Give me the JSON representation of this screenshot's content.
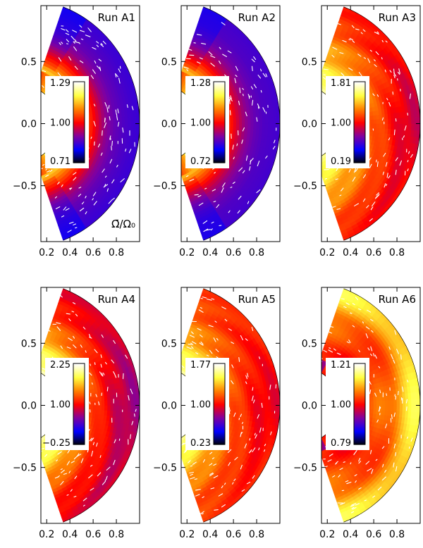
{
  "figure": {
    "colorbar_label": "Ω̄/Ω₀"
  },
  "axes": {
    "yticks": [
      "0.5",
      "0.0",
      "−0.5"
    ],
    "xticks": [
      "0.2",
      "0.4",
      "0.6",
      "0.8"
    ],
    "r_inner": 0.3,
    "r_outer": 1.0,
    "theta_range_deg": [
      -70,
      70
    ]
  },
  "colormap": {
    "stops": [
      "#000000",
      "#0000ff",
      "#8000a0",
      "#ff0000",
      "#ff8000",
      "#ffff40",
      "#ffffff"
    ]
  },
  "chart_data": [
    {
      "type": "heatmap",
      "title": "Run A1",
      "colorbar": {
        "max": "1.29",
        "mid": "1.00",
        "min": "0.71"
      },
      "pattern": "inner-fast",
      "rows": [
        {
          "r": [
            0.3,
            0.38,
            0.46,
            0.54,
            0.62,
            0.7,
            0.78,
            0.86,
            0.94,
            1.0
          ]
        },
        {
          "level": [
            0.88,
            0.84,
            0.76,
            0.62,
            0.48,
            0.36,
            0.3,
            0.27,
            0.25,
            0.24
          ]
        }
      ]
    },
    {
      "type": "heatmap",
      "title": "Run A2",
      "colorbar": {
        "max": "1.28",
        "mid": "1.00",
        "min": "0.72"
      },
      "pattern": "inner-fast",
      "rows": [
        {
          "r": [
            0.3,
            0.38,
            0.46,
            0.54,
            0.62,
            0.7,
            0.78,
            0.86,
            0.94,
            1.0
          ]
        },
        {
          "level": [
            0.86,
            0.82,
            0.74,
            0.6,
            0.46,
            0.36,
            0.3,
            0.27,
            0.26,
            0.25
          ]
        }
      ]
    },
    {
      "type": "heatmap",
      "title": "Run A3",
      "colorbar": {
        "max": "1.81",
        "mid": "1.00",
        "min": "0.19"
      },
      "pattern": "outer-slow",
      "rows": [
        {
          "r": [
            0.3,
            0.38,
            0.46,
            0.54,
            0.62,
            0.7,
            0.78,
            0.86,
            0.94,
            1.0
          ]
        },
        {
          "level": [
            0.82,
            0.76,
            0.7,
            0.64,
            0.6,
            0.55,
            0.5,
            0.45,
            0.42,
            0.44
          ]
        }
      ]
    },
    {
      "type": "heatmap",
      "title": "Run A4",
      "colorbar": {
        "max": "2.25",
        "mid": "1.00",
        "min": "−0.25"
      },
      "pattern": "outer-slow",
      "rows": [
        {
          "r": [
            0.3,
            0.38,
            0.46,
            0.54,
            0.62,
            0.7,
            0.78,
            0.86,
            0.94,
            1.0
          ]
        },
        {
          "level": [
            0.84,
            0.78,
            0.72,
            0.64,
            0.56,
            0.5,
            0.44,
            0.4,
            0.36,
            0.38
          ]
        }
      ]
    },
    {
      "type": "heatmap",
      "title": "Run A5",
      "colorbar": {
        "max": "1.77",
        "mid": "1.00",
        "min": "0.23"
      },
      "pattern": "outer-slow",
      "rows": [
        {
          "r": [
            0.3,
            0.38,
            0.46,
            0.54,
            0.62,
            0.7,
            0.78,
            0.86,
            0.94,
            1.0
          ]
        },
        {
          "level": [
            0.82,
            0.76,
            0.7,
            0.64,
            0.58,
            0.54,
            0.5,
            0.47,
            0.46,
            0.48
          ]
        }
      ]
    },
    {
      "type": "heatmap",
      "title": "Run A6",
      "colorbar": {
        "max": "1.21",
        "mid": "1.00",
        "min": "0.79"
      },
      "pattern": "red-yellow-band",
      "rows": [
        {
          "r": [
            0.3,
            0.38,
            0.46,
            0.54,
            0.62,
            0.7,
            0.78,
            0.86,
            0.94,
            1.0
          ]
        },
        {
          "level": [
            0.5,
            0.5,
            0.52,
            0.55,
            0.58,
            0.6,
            0.64,
            0.72,
            0.78,
            0.8
          ]
        }
      ]
    }
  ]
}
